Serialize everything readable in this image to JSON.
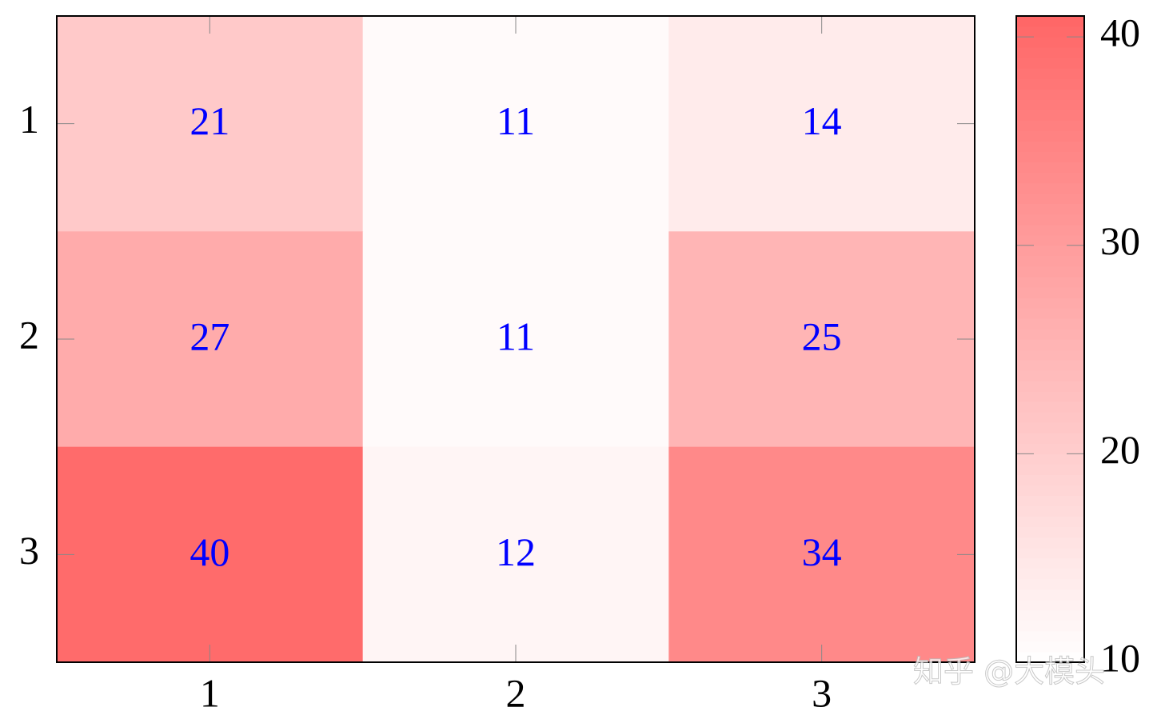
{
  "chart_data": {
    "type": "heatmap",
    "x": [
      1,
      2,
      3
    ],
    "y": [
      1,
      2,
      3
    ],
    "values": [
      [
        21,
        11,
        14
      ],
      [
        27,
        11,
        25
      ],
      [
        40,
        12,
        34
      ]
    ],
    "xlim": [
      0.5,
      3.5
    ],
    "ylim": [
      3.5,
      0.5
    ],
    "xticks": [
      1,
      2,
      3
    ],
    "yticks": [
      1,
      2,
      3
    ],
    "colormap": [
      "#ffffff",
      "#ff6666"
    ],
    "clim": [
      10,
      41
    ],
    "cticks": [
      10,
      20,
      30,
      40
    ],
    "label_color": "#0000ff",
    "watermark": "知乎 @大模头"
  }
}
